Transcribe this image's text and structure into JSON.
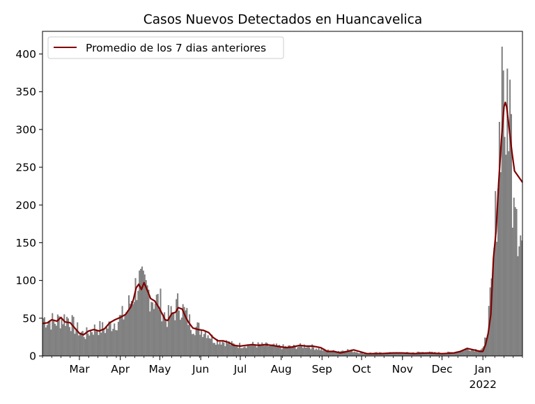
{
  "chart_data": {
    "type": "bar",
    "title": "Casos Nuevos Detectados en Huancavelica",
    "xlabel": "",
    "ylabel": "",
    "x_range": [
      "2021-02-01",
      "2022-01-31"
    ],
    "ylim": [
      0,
      430
    ],
    "y_ticks": [
      0,
      50,
      100,
      150,
      200,
      250,
      300,
      350,
      400
    ],
    "x_ticks": [
      {
        "date": "2021-03-01",
        "label": "Mar"
      },
      {
        "date": "2021-04-01",
        "label": "Apr"
      },
      {
        "date": "2021-05-01",
        "label": "May"
      },
      {
        "date": "2021-06-01",
        "label": "Jun"
      },
      {
        "date": "2021-07-01",
        "label": "Jul"
      },
      {
        "date": "2021-08-01",
        "label": "Aug"
      },
      {
        "date": "2021-09-01",
        "label": "Sep"
      },
      {
        "date": "2021-10-01",
        "label": "Oct"
      },
      {
        "date": "2021-11-01",
        "label": "Nov"
      },
      {
        "date": "2021-12-01",
        "label": "Dec"
      },
      {
        "date": "2022-01-01",
        "label": "Jan",
        "sublabel": "2022"
      }
    ],
    "grid": false,
    "legend_position": "top-left",
    "bar_color": "#808080",
    "line_color": "#800000",
    "series": [
      {
        "type": "bar",
        "points": [
          [
            "2021-02-01",
            50
          ],
          [
            "2021-02-05",
            48
          ],
          [
            "2021-02-10",
            45
          ],
          [
            "2021-02-15",
            50
          ],
          [
            "2021-02-20",
            50
          ],
          [
            "2021-02-25",
            38
          ],
          [
            "2021-03-01",
            32
          ],
          [
            "2021-03-05",
            28
          ],
          [
            "2021-03-10",
            35
          ],
          [
            "2021-03-15",
            37
          ],
          [
            "2021-03-20",
            36
          ],
          [
            "2021-03-25",
            42
          ],
          [
            "2021-04-01",
            50
          ],
          [
            "2021-04-05",
            58
          ],
          [
            "2021-04-10",
            80
          ],
          [
            "2021-04-14",
            100
          ],
          [
            "2021-04-18",
            90
          ],
          [
            "2021-04-22",
            85
          ],
          [
            "2021-04-26",
            75
          ],
          [
            "2021-05-01",
            70
          ],
          [
            "2021-05-05",
            50
          ],
          [
            "2021-05-10",
            55
          ],
          [
            "2021-05-15",
            70
          ],
          [
            "2021-05-20",
            55
          ],
          [
            "2021-05-25",
            40
          ],
          [
            "2021-06-01",
            35
          ],
          [
            "2021-06-05",
            32
          ],
          [
            "2021-06-10",
            22
          ],
          [
            "2021-06-15",
            20
          ],
          [
            "2021-06-20",
            18
          ],
          [
            "2021-06-25",
            15
          ],
          [
            "2021-07-01",
            14
          ],
          [
            "2021-07-10",
            15
          ],
          [
            "2021-07-20",
            14
          ],
          [
            "2021-08-01",
            12
          ],
          [
            "2021-08-10",
            12
          ],
          [
            "2021-08-20",
            14
          ],
          [
            "2021-09-01",
            8
          ],
          [
            "2021-09-10",
            6
          ],
          [
            "2021-09-20",
            8
          ],
          [
            "2021-10-01",
            4
          ],
          [
            "2021-10-15",
            4
          ],
          [
            "2021-11-01",
            4
          ],
          [
            "2021-11-15",
            5
          ],
          [
            "2021-12-01",
            4
          ],
          [
            "2021-12-10",
            5
          ],
          [
            "2021-12-20",
            10
          ],
          [
            "2021-12-28",
            8
          ],
          [
            "2022-01-01",
            10
          ],
          [
            "2022-01-04",
            40
          ],
          [
            "2022-01-08",
            100
          ],
          [
            "2022-01-10",
            175
          ],
          [
            "2022-01-12",
            250
          ],
          [
            "2022-01-14",
            330
          ],
          [
            "2022-01-15",
            380
          ],
          [
            "2022-01-16",
            410
          ],
          [
            "2022-01-17",
            330
          ],
          [
            "2022-01-18",
            210
          ],
          [
            "2022-01-19",
            360
          ],
          [
            "2022-01-21",
            330
          ],
          [
            "2022-01-23",
            240
          ],
          [
            "2022-01-25",
            255
          ],
          [
            "2022-01-27",
            180
          ],
          [
            "2022-01-30",
            150
          ]
        ]
      },
      {
        "type": "line",
        "name": "Promedio de los 7 dias anteriores",
        "points": [
          [
            "2021-02-01",
            43
          ],
          [
            "2021-02-05",
            44
          ],
          [
            "2021-02-08",
            48
          ],
          [
            "2021-02-12",
            46
          ],
          [
            "2021-02-15",
            51
          ],
          [
            "2021-02-18",
            45
          ],
          [
            "2021-02-22",
            44
          ],
          [
            "2021-02-25",
            38
          ],
          [
            "2021-03-01",
            30
          ],
          [
            "2021-03-04",
            28
          ],
          [
            "2021-03-08",
            33
          ],
          [
            "2021-03-12",
            35
          ],
          [
            "2021-03-16",
            33
          ],
          [
            "2021-03-20",
            36
          ],
          [
            "2021-03-24",
            44
          ],
          [
            "2021-03-28",
            48
          ],
          [
            "2021-04-01",
            51
          ],
          [
            "2021-04-05",
            55
          ],
          [
            "2021-04-09",
            65
          ],
          [
            "2021-04-11",
            75
          ],
          [
            "2021-04-13",
            90
          ],
          [
            "2021-04-15",
            95
          ],
          [
            "2021-04-17",
            88
          ],
          [
            "2021-04-19",
            97
          ],
          [
            "2021-04-22",
            85
          ],
          [
            "2021-04-24",
            76
          ],
          [
            "2021-04-27",
            73
          ],
          [
            "2021-04-30",
            65
          ],
          [
            "2021-05-03",
            55
          ],
          [
            "2021-05-05",
            48
          ],
          [
            "2021-05-07",
            47
          ],
          [
            "2021-05-10",
            56
          ],
          [
            "2021-05-13",
            58
          ],
          [
            "2021-05-15",
            64
          ],
          [
            "2021-05-18",
            62
          ],
          [
            "2021-05-21",
            50
          ],
          [
            "2021-05-23",
            44
          ],
          [
            "2021-05-26",
            37
          ],
          [
            "2021-05-30",
            35
          ],
          [
            "2021-06-03",
            34
          ],
          [
            "2021-06-07",
            31
          ],
          [
            "2021-06-10",
            25
          ],
          [
            "2021-06-14",
            20
          ],
          [
            "2021-06-18",
            20
          ],
          [
            "2021-06-22",
            18
          ],
          [
            "2021-06-26",
            14
          ],
          [
            "2021-07-01",
            13
          ],
          [
            "2021-07-05",
            14
          ],
          [
            "2021-07-10",
            15
          ],
          [
            "2021-07-15",
            14
          ],
          [
            "2021-07-20",
            15
          ],
          [
            "2021-07-25",
            14
          ],
          [
            "2021-08-01",
            12
          ],
          [
            "2021-08-05",
            11
          ],
          [
            "2021-08-10",
            12
          ],
          [
            "2021-08-15",
            14
          ],
          [
            "2021-08-20",
            13
          ],
          [
            "2021-08-25",
            13
          ],
          [
            "2021-08-31",
            11
          ],
          [
            "2021-09-05",
            6
          ],
          [
            "2021-09-10",
            6
          ],
          [
            "2021-09-15",
            4
          ],
          [
            "2021-09-20",
            6
          ],
          [
            "2021-09-25",
            8
          ],
          [
            "2021-10-01",
            5
          ],
          [
            "2021-10-05",
            3
          ],
          [
            "2021-10-15",
            3
          ],
          [
            "2021-10-25",
            4
          ],
          [
            "2021-11-01",
            4
          ],
          [
            "2021-11-10",
            3
          ],
          [
            "2021-11-20",
            4
          ],
          [
            "2021-12-01",
            3
          ],
          [
            "2021-12-10",
            4
          ],
          [
            "2021-12-15",
            6
          ],
          [
            "2021-12-20",
            10
          ],
          [
            "2021-12-25",
            8
          ],
          [
            "2021-12-30",
            6
          ],
          [
            "2022-01-01",
            6
          ],
          [
            "2022-01-03",
            15
          ],
          [
            "2022-01-05",
            30
          ],
          [
            "2022-01-07",
            55
          ],
          [
            "2022-01-09",
            130
          ],
          [
            "2022-01-11",
            165
          ],
          [
            "2022-01-13",
            230
          ],
          [
            "2022-01-15",
            285
          ],
          [
            "2022-01-17",
            330
          ],
          [
            "2022-01-18",
            336
          ],
          [
            "2022-01-19",
            330
          ],
          [
            "2022-01-21",
            300
          ],
          [
            "2022-01-23",
            270
          ],
          [
            "2022-01-25",
            245
          ],
          [
            "2022-01-27",
            240
          ],
          [
            "2022-01-29",
            235
          ],
          [
            "2022-01-31",
            230
          ]
        ]
      }
    ]
  }
}
